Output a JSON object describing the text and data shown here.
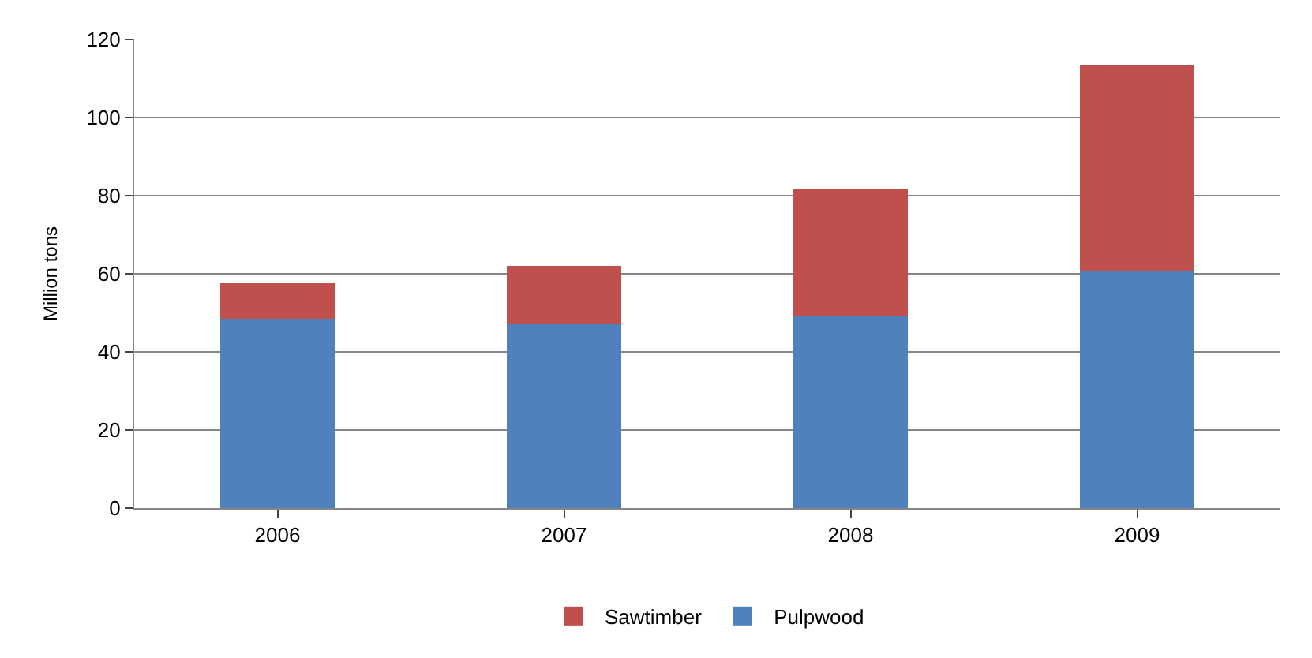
{
  "chart_data": {
    "type": "bar",
    "stacked": true,
    "ylabel": "Million tons",
    "categories": [
      "2006",
      "2007",
      "2008",
      "2009"
    ],
    "series": [
      {
        "name": "Pulpwood",
        "color": "#4f81bd",
        "values": [
          48.5,
          47,
          49.3,
          60.7
        ]
      },
      {
        "name": "Sawtimber",
        "color": "#c0504d",
        "values": [
          9.1,
          15,
          32.4,
          52.6
        ]
      }
    ],
    "ylim": [
      0,
      120
    ],
    "yticks": [
      0,
      20,
      40,
      60,
      80,
      100,
      120
    ],
    "grid": "y",
    "legend": "bottom"
  }
}
